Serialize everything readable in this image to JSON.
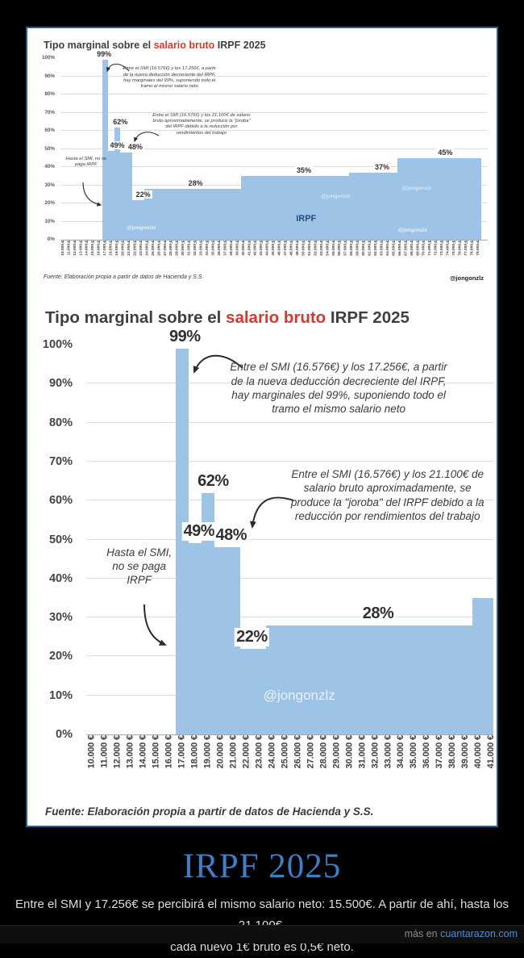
{
  "page": {
    "title": "IRPF 2025",
    "caption_line1": "Entre el SMI y 17.256€ se percibirá el mismo salario neto: 15.500€. A partir de ahí, hasta los 21.100€,",
    "caption_line2": "cada nuevo 1€ bruto es 0,5€ neto.",
    "footer_prefix": "más en",
    "footer_site": "cuantarazon.com"
  },
  "annotations": {
    "deduction_99": "Entre el SMI (16.576€) y los 17.256€, a partir de la nueva deducción decreciente del IRPF, hay marginales del 99%, suponiendo todo el tramo el mismo salario neto",
    "joroba": "Entre el SMI (16.576€) y los 21.100€ de salario bruto aproximadamente, se produce la \"joroba\" del IRPF debido a la reducción por rendimientos del trabajo",
    "smi": "Hasta el SMI, no se paga IRPF"
  },
  "chart_data": [
    {
      "type": "bar",
      "title": {
        "prefix": "Tipo marginal sobre el ",
        "highlight": "salario bruto",
        "suffix": " IRPF 2025"
      },
      "source": "Fuente: Elaboración propia a partir de datos de Hacienda y S.S.",
      "author_handle": "@jongonzlz",
      "watermark": "@jongonzlz",
      "irpf_label": "IRPF",
      "ylim": [
        0,
        100
      ],
      "y_tick_step": 10,
      "y_tick_labels": [
        "0%",
        "10%",
        "20%",
        "30%",
        "40%",
        "50%",
        "60%",
        "70%",
        "80%",
        "90%",
        "100%"
      ],
      "x_ticks": {
        "from_k": 10,
        "to_k": 79
      },
      "x_tick_suffix": " €",
      "bar_color": "#9dc3e6",
      "grid": true,
      "legend": null,
      "segments": [
        {
          "from_k": 10,
          "to_k": 16,
          "rate_pct": 0
        },
        {
          "from_k": 17,
          "to_k": 17,
          "rate_pct": 99
        },
        {
          "from_k": 18,
          "to_k": 18,
          "rate_pct": 49
        },
        {
          "from_k": 19,
          "to_k": 19,
          "rate_pct": 62
        },
        {
          "from_k": 20,
          "to_k": 21,
          "rate_pct": 48
        },
        {
          "from_k": 22,
          "to_k": 23,
          "rate_pct": 22
        },
        {
          "from_k": 24,
          "to_k": 39,
          "rate_pct": 28
        },
        {
          "from_k": 40,
          "to_k": 57,
          "rate_pct": 35
        },
        {
          "from_k": 58,
          "to_k": 65,
          "rate_pct": 37
        },
        {
          "from_k": 66,
          "to_k": 79,
          "rate_pct": 45
        }
      ],
      "value_labels": [
        {
          "text": "99%",
          "x_k": 16.8,
          "v": 99
        },
        {
          "text": "62%",
          "x_k": 19.5,
          "v": 62
        },
        {
          "text": "49%",
          "x_k": 19.0,
          "v": 49
        },
        {
          "text": "48%",
          "x_k": 22.0,
          "v": 48
        },
        {
          "text": "22%",
          "x_k": 23.3,
          "v": 22
        },
        {
          "text": "28%",
          "x_k": 32.0,
          "v": 28
        },
        {
          "text": "35%",
          "x_k": 50.0,
          "v": 35
        },
        {
          "text": "37%",
          "x_k": 63.0,
          "v": 37
        },
        {
          "text": "45%",
          "x_k": 73.5,
          "v": 45
        }
      ]
    },
    {
      "type": "bar",
      "title": {
        "prefix": "Tipo marginal sobre el ",
        "highlight": "salario bruto",
        "suffix": " IRPF 2025"
      },
      "source": "Fuente: Elaboración propia a partir de datos de Hacienda y S.S.",
      "watermark": "@jongonzlz",
      "ylim": [
        0,
        100
      ],
      "y_tick_step": 10,
      "y_tick_labels": [
        "0%",
        "10%",
        "20%",
        "30%",
        "40%",
        "50%",
        "60%",
        "70%",
        "80%",
        "90%",
        "100%"
      ],
      "x_ticks": {
        "from_k": 10,
        "to_k": 41
      },
      "x_tick_suffix": " €",
      "bar_color": "#9dc3e6",
      "grid": true,
      "legend": null,
      "segments": [
        {
          "from_k": 10,
          "to_k": 16,
          "rate_pct": 0
        },
        {
          "from_k": 17,
          "to_k": 17,
          "rate_pct": 99
        },
        {
          "from_k": 18,
          "to_k": 18,
          "rate_pct": 49
        },
        {
          "from_k": 19,
          "to_k": 19,
          "rate_pct": 62
        },
        {
          "from_k": 20,
          "to_k": 21,
          "rate_pct": 48
        },
        {
          "from_k": 22,
          "to_k": 23,
          "rate_pct": 22
        },
        {
          "from_k": 24,
          "to_k": 39,
          "rate_pct": 28
        },
        {
          "from_k": 40,
          "to_k": 41,
          "rate_pct": 35
        }
      ],
      "value_labels": [
        {
          "text": "99%",
          "x_k": 17.2,
          "v": 99
        },
        {
          "text": "62%",
          "x_k": 19.4,
          "v": 62
        },
        {
          "text": "49%",
          "x_k": 18.3,
          "v": 49
        },
        {
          "text": "48%",
          "x_k": 20.8,
          "v": 48
        },
        {
          "text": "22%",
          "x_k": 22.4,
          "v": 22
        },
        {
          "text": "28%",
          "x_k": 32.2,
          "v": 28
        }
      ]
    }
  ]
}
